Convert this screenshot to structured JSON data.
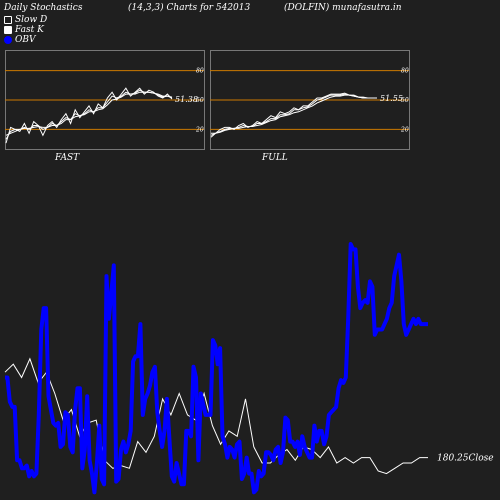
{
  "header": {
    "title_left": "Daily Stochastics",
    "title_mid": "(14,3,3) Charts for 542013",
    "title_right": "(DOLFIN) munafasutra.in"
  },
  "legend": [
    {
      "label": "Slow  D",
      "style": "hollow"
    },
    {
      "label": "Fast K",
      "style": "white"
    },
    {
      "label": "OBV",
      "style": "blue"
    }
  ],
  "colors": {
    "background": "#1f1f1f",
    "obv": "#0000ff",
    "price": "#ffffff",
    "band": "#cc7a00",
    "frame": "#777777"
  },
  "chart_data": [
    {
      "type": "line",
      "name": "FAST",
      "ylim": [
        0,
        100
      ],
      "levels": [
        20,
        50,
        80
      ],
      "last_value_label": "51.38",
      "series": [
        {
          "values": [
            6,
            22,
            20,
            18,
            26,
            16,
            28,
            24,
            14,
            24,
            28,
            22,
            30,
            36,
            26,
            40,
            32,
            38,
            44,
            36,
            46,
            42,
            52,
            58,
            50,
            56,
            62,
            54,
            58,
            62,
            56,
            60,
            58,
            54,
            52,
            56,
            51
          ]
        },
        {
          "values": [
            10,
            18,
            20,
            20,
            22,
            20,
            24,
            24,
            20,
            22,
            26,
            24,
            28,
            32,
            30,
            36,
            34,
            36,
            40,
            38,
            42,
            42,
            48,
            54,
            52,
            54,
            58,
            56,
            57,
            60,
            58,
            58,
            57,
            55,
            53,
            54,
            52
          ]
        },
        {
          "values": [
            14,
            16,
            18,
            20,
            21,
            21,
            22,
            23,
            22,
            22,
            24,
            24,
            26,
            30,
            30,
            33,
            34,
            35,
            38,
            38,
            40,
            41,
            45,
            50,
            51,
            53,
            56,
            56,
            56,
            58,
            58,
            58,
            57,
            56,
            54,
            54,
            53
          ]
        }
      ]
    },
    {
      "type": "line",
      "name": "FULL",
      "ylim": [
        0,
        100
      ],
      "levels": [
        20,
        50,
        80
      ],
      "last_value_label": "51.55",
      "series": [
        {
          "values": [
            12,
            16,
            20,
            22,
            22,
            20,
            24,
            26,
            22,
            24,
            28,
            26,
            30,
            34,
            32,
            38,
            36,
            38,
            42,
            40,
            44,
            44,
            48,
            52,
            52,
            54,
            56,
            56,
            56,
            57,
            55,
            55,
            53,
            52,
            52,
            52,
            52
          ]
        },
        {
          "values": [
            14,
            16,
            18,
            20,
            21,
            21,
            22,
            24,
            23,
            23,
            26,
            26,
            28,
            31,
            31,
            35,
            35,
            36,
            40,
            40,
            42,
            43,
            46,
            50,
            51,
            53,
            55,
            55,
            55,
            56,
            55,
            54,
            53,
            52,
            52,
            52,
            52
          ]
        },
        {
          "values": [
            16,
            16,
            17,
            19,
            20,
            21,
            21,
            22,
            23,
            23,
            24,
            25,
            27,
            29,
            30,
            33,
            34,
            35,
            37,
            38,
            40,
            42,
            44,
            47,
            49,
            51,
            53,
            54,
            54,
            55,
            55,
            54,
            53,
            53,
            52,
            52,
            52
          ]
        }
      ]
    },
    {
      "type": "line",
      "name": "price-obv",
      "last_close_label": "180.25Close",
      "series": [
        {
          "name": "OBV",
          "values": [
            44,
            44,
            35,
            33,
            33,
            13,
            13,
            10,
            10,
            11,
            7,
            9,
            7,
            8,
            30,
            62,
            70,
            70,
            37,
            32,
            27,
            26,
            27,
            18,
            19,
            31,
            30,
            18,
            16,
            32,
            40,
            40,
            10,
            17,
            37,
            13,
            8,
            1,
            12,
            26,
            6,
            4,
            82,
            66,
            76,
            86,
            5,
            6,
            17,
            20,
            16,
            19,
            24,
            50,
            52,
            52,
            64,
            30,
            36,
            38,
            41,
            46,
            48,
            31,
            24,
            18,
            24,
            36,
            21,
            7,
            5,
            12,
            8,
            4,
            4,
            24,
            24,
            22,
            48,
            44,
            13,
            38,
            34,
            30,
            30,
            30,
            58,
            56,
            49,
            55,
            22,
            19,
            14,
            18,
            17,
            14,
            19,
            20,
            6,
            8,
            14,
            8,
            8,
            1,
            2,
            9,
            7,
            8,
            16,
            16,
            15,
            13,
            17,
            18,
            12,
            16,
            29,
            28,
            20,
            20,
            18,
            20,
            15,
            22,
            18,
            16,
            14,
            14,
            26,
            20,
            24,
            24,
            19,
            22,
            30,
            31,
            32,
            33,
            40,
            43,
            42,
            44,
            66,
            94,
            92,
            92,
            78,
            70,
            72,
            73,
            72,
            80,
            78,
            60,
            62,
            62,
            62,
            64,
            66,
            70,
            72,
            82,
            86,
            90,
            80,
            64,
            60,
            62,
            64,
            66,
            64,
            66,
            64,
            64,
            64,
            64
          ]
        },
        {
          "name": "Price",
          "values": [
            46,
            49,
            44,
            51,
            42,
            46,
            38,
            28,
            32,
            22,
            27,
            28,
            13,
            10,
            11,
            10,
            20,
            16,
            22,
            36,
            30,
            38,
            30,
            28,
            38,
            26,
            19,
            24,
            22,
            36,
            18,
            12,
            12,
            15,
            17,
            13,
            18,
            17,
            14,
            18,
            12,
            14,
            12,
            14,
            14,
            9,
            8,
            10,
            12,
            12,
            14,
            14
          ]
        }
      ]
    }
  ],
  "panels": {
    "fast_label": "FAST",
    "full_label": "FULL"
  }
}
